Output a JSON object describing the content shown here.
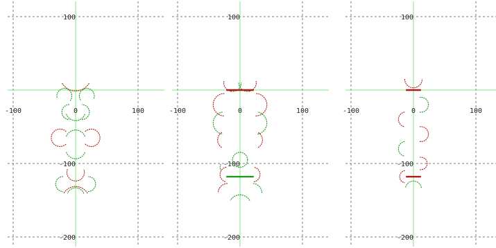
{
  "colors": {
    "grid": "#7a7a7a",
    "axis": "#7fe77f",
    "red": "#b01818",
    "green": "#1c9a1c",
    "background": "#ffffff"
  },
  "chart_data": [
    {
      "type": "scatter",
      "title": "",
      "xlim": [
        -100,
        100
      ],
      "ylim": [
        -200,
        100
      ],
      "xticks": [
        -100,
        0,
        100
      ],
      "yticks": [
        100,
        -100,
        -200
      ],
      "xtick_labels": [
        "-100",
        "0",
        "100"
      ],
      "ytick_labels": [
        "100",
        "-100",
        "-200"
      ],
      "grid": true,
      "series": [
        {
          "color": "red",
          "arcs": [
            {
              "cx": 0,
              "cy": 20,
              "r": 25,
              "start": 210,
              "end": 330
            },
            {
              "cx": -25,
              "cy": -65,
              "r": 14,
              "start": 45,
              "end": 315
            },
            {
              "cx": 25,
              "cy": -65,
              "r": 14,
              "start": -135,
              "end": 135
            },
            {
              "cx": 0,
              "cy": -112,
              "r": 14,
              "start": 160,
              "end": 380
            },
            {
              "cx": 0,
              "cy": -150,
              "r": 22,
              "start": 30,
              "end": 150
            }
          ]
        },
        {
          "color": "green",
          "arcs": [
            {
              "cx": -18,
              "cy": -8,
              "r": 12,
              "start": -40,
              "end": 200
            },
            {
              "cx": 18,
              "cy": -8,
              "r": 12,
              "start": -20,
              "end": 220
            },
            {
              "cx": 0,
              "cy": -28,
              "r": 16,
              "start": 200,
              "end": 340
            },
            {
              "cx": -10,
              "cy": -30,
              "r": 12,
              "start": 90,
              "end": 270
            },
            {
              "cx": 10,
              "cy": -30,
              "r": 12,
              "start": -90,
              "end": 90
            },
            {
              "cx": 0,
              "cy": -68,
              "r": 16,
              "start": 20,
              "end": 160
            },
            {
              "cx": 0,
              "cy": -80,
              "r": 16,
              "start": 200,
              "end": 340
            },
            {
              "cx": -20,
              "cy": -128,
              "r": 12,
              "start": 90,
              "end": 270
            },
            {
              "cx": 20,
              "cy": -128,
              "r": 12,
              "start": -90,
              "end": 90
            },
            {
              "cx": 0,
              "cy": -145,
              "r": 14,
              "start": 20,
              "end": 160
            }
          ]
        }
      ]
    },
    {
      "type": "scatter",
      "title": "",
      "xlim": [
        -100,
        100
      ],
      "ylim": [
        -200,
        100
      ],
      "xticks": [
        -100,
        0,
        100
      ],
      "yticks": [
        100,
        -100,
        -200
      ],
      "xtick_labels": [
        "-100",
        "0",
        "100"
      ],
      "ytick_labels": [
        "100",
        "-100",
        "-200"
      ],
      "grid": true,
      "series": [
        {
          "color": "red",
          "arcs": [
            {
              "cx": -12,
              "cy": 10,
              "r": 14,
              "start": 170,
              "end": 260
            },
            {
              "cx": 12,
              "cy": 10,
              "r": 14,
              "start": -80,
              "end": 10
            },
            {
              "cx": -25,
              "cy": -20,
              "r": 18,
              "start": 90,
              "end": 270
            },
            {
              "cx": 25,
              "cy": -20,
              "r": 18,
              "start": -90,
              "end": 90
            },
            {
              "cx": -22,
              "cy": -68,
              "r": 14,
              "start": 120,
              "end": 240
            },
            {
              "cx": 22,
              "cy": -68,
              "r": 14,
              "start": -60,
              "end": 60
            },
            {
              "cx": -20,
              "cy": -115,
              "r": 12,
              "start": 100,
              "end": 260
            },
            {
              "cx": 20,
              "cy": -115,
              "r": 12,
              "start": -80,
              "end": 80
            },
            {
              "cx": -20,
              "cy": -140,
              "r": 15,
              "start": 90,
              "end": 180
            }
          ]
        },
        {
          "color": "green",
          "arcs": [
            {
              "cx": -12,
              "cy": 10,
              "r": 14,
              "start": 260,
              "end": 360
            },
            {
              "cx": 12,
              "cy": 10,
              "r": 14,
              "start": 180,
              "end": 280
            },
            {
              "cx": -25,
              "cy": -45,
              "r": 18,
              "start": 100,
              "end": 260
            },
            {
              "cx": 25,
              "cy": -45,
              "r": 18,
              "start": -80,
              "end": 80
            },
            {
              "cx": 0,
              "cy": -95,
              "r": 12,
              "start": 0,
              "end": 360
            },
            {
              "cx": -22,
              "cy": -105,
              "r": 10,
              "start": 150,
              "end": 210
            },
            {
              "cx": 20,
              "cy": -140,
              "r": 15,
              "start": 0,
              "end": 90
            },
            {
              "cx": 0,
              "cy": -158,
              "r": 18,
              "start": 30,
              "end": 150
            }
          ]
        }
      ],
      "bars": [
        {
          "y": 0,
          "x1": -22,
          "x2": 22,
          "color": "red"
        },
        {
          "y": -118,
          "x1": -22,
          "x2": 22,
          "color": "green"
        }
      ]
    },
    {
      "type": "scatter",
      "title": "",
      "xlim": [
        -100,
        100
      ],
      "ylim": [
        -200,
        100
      ],
      "xticks": [
        -100,
        0,
        100
      ],
      "yticks": [
        100,
        -100,
        -200
      ],
      "xtick_labels": [
        "-100",
        "0",
        "100"
      ],
      "ytick_labels": [
        "100",
        "-100",
        "-200"
      ],
      "grid": true,
      "series": [
        {
          "color": "red",
          "arcs": [
            {
              "cx": 0,
              "cy": 15,
              "r": 14,
              "start": 180,
              "end": 360
            },
            {
              "cx": 12,
              "cy": -60,
              "r": 12,
              "start": -100,
              "end": 100
            },
            {
              "cx": -12,
              "cy": -40,
              "r": 12,
              "start": 100,
              "end": 260
            },
            {
              "cx": 12,
              "cy": -100,
              "r": 10,
              "start": -100,
              "end": 100
            },
            {
              "cx": -12,
              "cy": -118,
              "r": 10,
              "start": 100,
              "end": 260
            }
          ]
        },
        {
          "color": "green",
          "arcs": [
            {
              "cx": 12,
              "cy": -20,
              "r": 12,
              "start": -100,
              "end": 100
            },
            {
              "cx": -12,
              "cy": -80,
              "r": 12,
              "start": 100,
              "end": 260
            },
            {
              "cx": 0,
              "cy": -135,
              "r": 13,
              "start": 10,
              "end": 170
            }
          ]
        }
      ],
      "bars": [
        {
          "y": 0,
          "x1": -12,
          "x2": 12,
          "color": "red"
        },
        {
          "y": -118,
          "x1": -12,
          "x2": 12,
          "color": "red"
        }
      ]
    }
  ]
}
